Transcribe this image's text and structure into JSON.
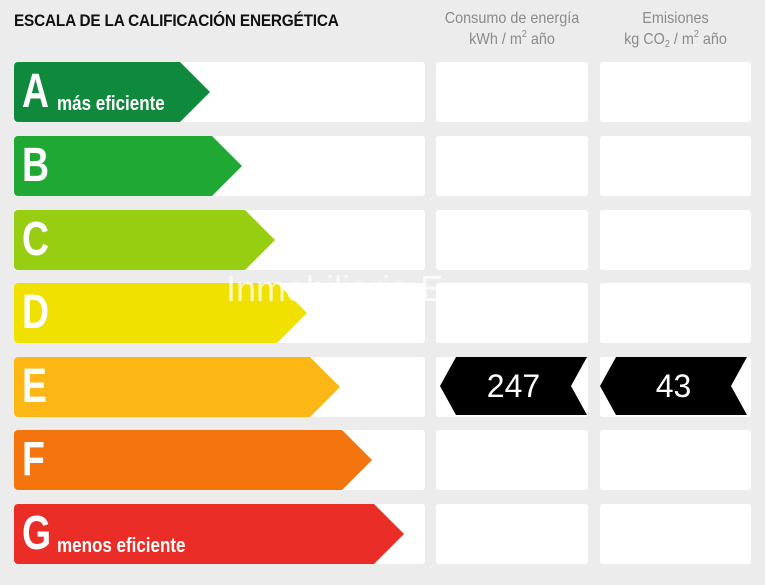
{
  "title": "ESCALA DE LA CALIFICACIÓN ENERGÉTICA",
  "consumption_header": {
    "line1": "Consumo de energía",
    "unit_a": "kWh / m",
    "sup": "2",
    "unit_b": " año"
  },
  "emissions_header": {
    "line1": "Emisiones",
    "unit_a": "kg CO",
    "sub": "2",
    "unit_b": " / m",
    "sup": "2",
    "unit_c": " año"
  },
  "ratings": [
    {
      "letter": "A",
      "sublabel": "más eficiente",
      "color": "#0f8a3c"
    },
    {
      "letter": "B",
      "sublabel": "",
      "color": "#1fa834"
    },
    {
      "letter": "C",
      "sublabel": "",
      "color": "#97ce12"
    },
    {
      "letter": "D",
      "sublabel": "",
      "color": "#f1e101"
    },
    {
      "letter": "E",
      "sublabel": "",
      "color": "#fcb715"
    },
    {
      "letter": "F",
      "sublabel": "",
      "color": "#f4740e"
    },
    {
      "letter": "G",
      "sublabel": "menos eficiente",
      "color": "#ea2d26"
    }
  ],
  "current_rating": "E",
  "consumption_value": "247",
  "emissions_value": "43",
  "watermark": "Inmobiliaria E"
}
